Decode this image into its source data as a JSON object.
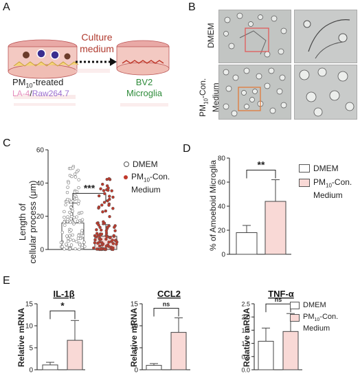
{
  "panels": {
    "a": "A",
    "b": "B",
    "c": "C",
    "d": "D",
    "e": "E"
  },
  "panelA": {
    "culture_line1": "Culture",
    "culture_line2": "medium",
    "treated_prefix": "PM",
    "treated_sub": "10",
    "treated_suffix": "-treated",
    "cell_line_a": "LA-4",
    "cell_line_sep": "/",
    "cell_line_b": "Raw264.7",
    "recipient_line1": "BV2",
    "recipient_line2": "Microglia",
    "colors": {
      "arrow_text": "#b03a2e",
      "cell_a": "#e58fbf",
      "cell_b": "#9b6fd1",
      "recipient": "#2e8b3a",
      "dish_top": "#e9a9a6",
      "dish_body": "#f3c9c2"
    }
  },
  "panelB": {
    "row1_label": "DMEM",
    "row2_label_prefix": "PM",
    "row2_label_sub": "10",
    "row2_label_suffix": "-Con.",
    "row2_label_line2": "Medium"
  },
  "chart_data": [
    {
      "id": "C",
      "type": "bar",
      "ylabel_line1": "Length of",
      "ylabel_line2": "cellular process (μm)",
      "ylim": [
        0,
        60
      ],
      "yticks": [
        "0",
        "20",
        "40",
        "60"
      ],
      "series": [
        {
          "name": "DMEM",
          "mean": 16,
          "sd": 12,
          "fill": "#ffffff",
          "point_color": "#ffffff"
        },
        {
          "name": "PM10-Con. Medium",
          "mean": 8,
          "sd": 7,
          "fill": "#f9d9d6",
          "point_color": "#c0392b"
        }
      ],
      "significance": "***",
      "legend": [
        "DMEM",
        "PM10-Con. Medium"
      ]
    },
    {
      "id": "D",
      "type": "bar",
      "ylabel": "% of Amoeboid Microglia",
      "ylim": [
        0,
        80
      ],
      "yticks": [
        "0",
        "20",
        "40",
        "60",
        "80"
      ],
      "series": [
        {
          "name": "DMEM",
          "value": 18,
          "err": 6,
          "fill": "#ffffff"
        },
        {
          "name": "PM10-Con. Medium",
          "value": 44,
          "err": 18,
          "fill": "#f9d9d6"
        }
      ],
      "significance": "**",
      "legend": [
        "DMEM",
        "PM10-Con. Medium"
      ]
    },
    {
      "id": "E1",
      "type": "bar",
      "title": "IL-1β",
      "ylabel": "Relative mRNA",
      "ylim": [
        0,
        15
      ],
      "yticks": [
        "0",
        "5",
        "10",
        "15"
      ],
      "series": [
        {
          "name": "DMEM",
          "value": 1.1,
          "err": 0.6,
          "fill": "#ffffff"
        },
        {
          "name": "PM10-Con. Medium",
          "value": 6.7,
          "err": 4.5,
          "fill": "#f9d9d6"
        }
      ],
      "significance": "*"
    },
    {
      "id": "E2",
      "type": "bar",
      "title": "CCL2",
      "ylabel": "Relative mRNA",
      "ylim": [
        0,
        15
      ],
      "yticks": [
        "0",
        "5",
        "10",
        "15"
      ],
      "series": [
        {
          "name": "DMEM",
          "value": 1.0,
          "err": 0.4,
          "fill": "#ffffff"
        },
        {
          "name": "PM10-Con. Medium",
          "value": 8.5,
          "err": 3.3,
          "fill": "#f9d9d6"
        }
      ],
      "significance": "ns"
    },
    {
      "id": "E3",
      "type": "bar",
      "title": "TNF-α",
      "ylabel": "Relative mRNA",
      "ylim": [
        0,
        2.5
      ],
      "yticks": [
        "0.0",
        "0.5",
        "1.0",
        "1.5",
        "2.0",
        "2.5"
      ],
      "series": [
        {
          "name": "DMEM",
          "value": 1.08,
          "err": 0.5,
          "fill": "#ffffff"
        },
        {
          "name": "PM10-Con. Medium",
          "value": 1.45,
          "err": 0.68,
          "fill": "#f9d9d6"
        }
      ],
      "significance": "ns",
      "legend": [
        "DMEM",
        "PM10-Con. Medium"
      ]
    }
  ],
  "legend_text": {
    "dmem": "DMEM",
    "pm_prefix": "PM",
    "pm_sub": "10",
    "pm_suffix": "-Con.",
    "pm_line2": "Medium"
  }
}
